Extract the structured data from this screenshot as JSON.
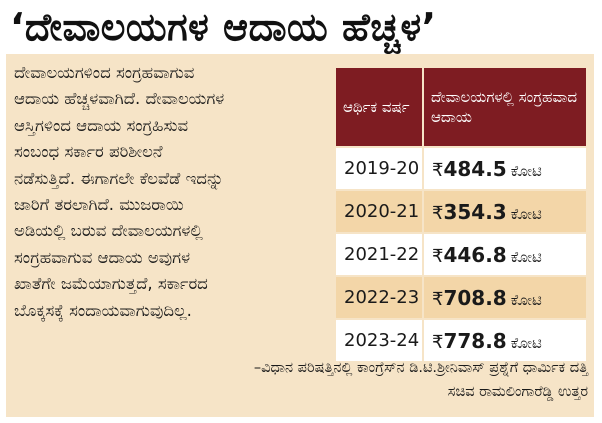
{
  "headline": "‘ದೇವಾಲಯಗಳ ಆದಾಯ ಹೆಚ್ಚಳ’",
  "body_lines": [
    "ದೇವಾಲಯಗಳಿಂದ ಸಂಗ್ರಹವಾಗುವ",
    "ಆದಾಯ ಹೆಚ್ಚಳವಾಗಿದೆ. ದೇವಾಲಯಗಳ",
    "ಆಸ್ತಿಗಳಿಂದ ಆದಾಯ ಸಂಗ್ರಹಿಸುವ",
    "ಸಂಬಂಧ ಸರ್ಕಾರ ಪರಿಶೀಲನೆ",
    "ನಡೆಸುತ್ತಿದೆ. ಈಗಾಗಲೇ ಕೆಲವೆಡೆ ಇದನ್ನು",
    "ಜಾರಿಗೆ ತರಲಾಗಿದೆ. ಮುಜರಾಯಿ",
    "ಅಡಿಯಲ್ಲಿ ಬರುವ ದೇವಾಲಯಗಳಲ್ಲಿ",
    "ಸಂಗ್ರಹವಾಗುವ ಆದಾಯ ಅವುಗಳ",
    "ಖಾತೆಗೇ ಜಮೆಯಾಗುತ್ತದೆ, ಸರ್ಕಾರದ",
    "ಬೊಕ್ಕಸಕ್ಕೆ ಸಂದಾಯವಾಗುವುದಿಲ್ಲ."
  ],
  "table": {
    "header_year": "ಆರ್ಥಿಕ ವರ್ಷ",
    "header_income": "ದೇವಾಲಯಗಳಲ್ಲಿ ಸಂಗ್ರಹವಾದ ಆದಾಯ",
    "rupee_symbol": "₹",
    "unit": "ಕೋಟಿ",
    "rows": [
      {
        "year": "2019-20",
        "amount": "484.5"
      },
      {
        "year": "2020-21",
        "amount": "354.3"
      },
      {
        "year": "2021-22",
        "amount": "446.8"
      },
      {
        "year": "2022-23",
        "amount": "708.8"
      },
      {
        "year": "2023-24",
        "amount": "778.8"
      }
    ],
    "colors": {
      "header_bg": "#7e1c22",
      "tint_row": "#f3d6a8",
      "panel": "#f6e4c7"
    }
  },
  "source_lines": [
    "–ವಿಧಾನ ಪರಿಷತ್ತಿನಲ್ಲಿ ಕಾಂಗ್ರೆಸ್‌ನ ಡಿ.ಟಿ.ಶ್ರೀನಿವಾಸ್ ಪ್ರಶ್ನೆಗೆ ಧಾರ್ಮಿಕ ದತ್ತಿ",
    "ಸಚಿವ ರಾಮಲಿಂಗಾರೆಡ್ಡಿ ಉತ್ತರ"
  ]
}
